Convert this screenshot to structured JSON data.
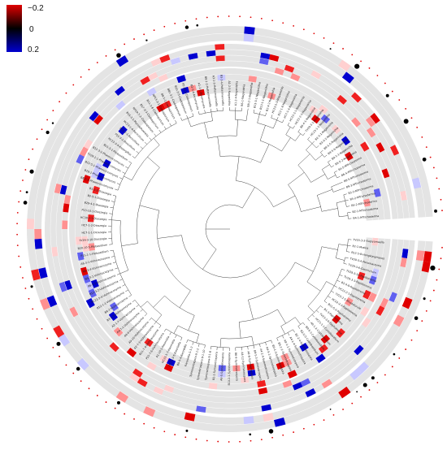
{
  "legend": {
    "ticks": [
      "−0.2",
      "0",
      "0.2"
    ],
    "colors": {
      "negative": "#e00000",
      "zero": "#000000",
      "positive": "#0000d0"
    }
  },
  "palette": {
    "background": "#ffffff",
    "ring_track": "#e4e4e4",
    "dot_black": "#000000",
    "dot_red": "#e00000",
    "tree_line": "#444444"
  },
  "tree_labels": [
    "TV23-3-2-Sugiyamaella",
    "B2-2-Mrakia",
    "B12-5-8-Hongkongmyces",
    "TV29-3-4-Ponomarzyma",
    "TV29-3-6-Geotrichum",
    "TV29-3-10-Papiliotrema",
    "TV29-3-3-Papiliotrema",
    "B2-4-9-Papiliotrema",
    "HC23-2-1-Papiliotrema",
    "TV23-2-5-Rhodotorula",
    "HC22-2-3-Papiliotrema",
    "B11-5-2-Papiliotrema",
    "B1-3-Papiliotrema",
    "TV23-3-6-Papiliotrema",
    "HC21-1-1-Cystobasidium",
    "A6-1-2-Cystobasidium",
    "B9-5-1-Cystobasidium",
    "B2-2-5-Cystobasidium",
    "B2-2-4-Symmetrospora",
    "A4-1-4-Symmetrospora",
    "A9-1-1-Symmetrospora",
    "B9-1-2-Symmetrospora",
    "B9-1-3-Symmetrospora",
    "A4-5-1-Symmetrospora",
    "A4-2-4-Symmetrospora",
    "B9-5-3-Symmetrospora",
    "A4-8-Symmetrospora",
    "A4-12-Symmetrospora",
    "B6-4-Symmetrospora",
    "B10-2-1-Symmetrospora",
    "A6-5-Symmetrospora",
    "B2-1-Symmetrospora",
    "Symmetrospora-9-1-8",
    "Symmetrospora-9-1-10",
    "Symmetrospora-9-1-2",
    "Kwoniella-5-1-2",
    "B9-5-4-Kwoniella",
    "HC21-3-5-Kwoniella",
    "HC23-1-7-Kwoniella",
    "A1-10-1-Kwoniella",
    "P15-7-6-Vishniacozyma",
    "B11-7-4-Vishniacozyma",
    "A2-7-3-Vishniacozyma",
    "A9-10-Vishniacozyma",
    "A9-6-Vishniacozyma",
    "A4-7-1-Vishniacozyma",
    "A2-1-7-Vishniacozyma",
    "B3-1-5-Vishniacozyma",
    "B8-1-Vishniacozyma",
    "B12-1-1-Vishniacozyma",
    "HC22-5-4-Vishniacozyma",
    "B12-3-2-Vishniacozyma",
    "B6-4-2-Vishniacozyma",
    "B5-3-1-Vishniacozyma",
    "A6-3-4-Vishniacozyma",
    "A6-3-1-Vishniacozyma",
    "P15-1-1-Filobasidium",
    "B20-10-5-Filobasidium",
    "TV29-3-10-Dioszegia",
    "HC7-1-1-Dioszegia",
    "HC7-1-2-Dioszegia",
    "HC30-1-1-Dioszegia",
    "P13-10-1-Dioszegia",
    "B29-4-1-Dioszegia",
    "B2-5-1-Dioszegia",
    "B3-3-5-Dioszegia",
    "B8-5-1-Phaeococcomyces",
    "B29-1-Phaeococcomyces",
    "B12-5-1-Phaeococcomyces",
    "TV29-1-1-Phaeococcomyces",
    "B12-3-3-Phaeococcomyces",
    "B11-5-1-Filobasidium",
    "HC22-3-4-Aspergillus",
    "P15-3-1-Penicillium",
    "B11-7-1-Penicillium",
    "HC23-1-4-Penicillium",
    "B15-3-1-Mycosphaerella",
    "NP19-7-2-Cladosporium",
    "B17-3-3-Cladosporium",
    "B11-1-6-Cladosporium",
    "NP13-3-1-Cladosporium",
    "B8-1-1-Cladosporium",
    "B81-3-1-Cladosporium",
    "B15-3-5-Cladosporium",
    "P5-10-1-Cladosporium",
    "B2-5-4-Ascomycota",
    "A1-1-1-Ascomycota",
    "B8-1-2-Holtermanniella",
    "A3-1-3-Holtermanniella",
    "B3-3-4-Holtermanniella",
    "A1-2-5-Naganishia",
    "A1-2-4-Naganishia",
    "B6-1-Naganishia",
    "B8-2-1-Naganishia",
    "B13-3-1-Naganishia",
    "B13-1-1-Naganishia",
    "B2-4-2-Naganishia",
    "HC23-5-3-Naganishia",
    "B12-1-8-Naganishia",
    "HC7-1-4-Naganishia",
    "HC23-3-1-Naganishia",
    "HC22-2-5-Naganishia",
    "B6-4-1-Naganishia",
    "TV29-3-1-Naganishia",
    "HC23-1-2-Naganishia",
    "B2-3-1-Naganishia",
    "B3-3-2-Naganishia",
    "B9-5-5-Naganishia",
    "B9-5-6-Naganishia",
    "B9-1-1-Naganishia",
    "B9-5-2-Naganishia",
    "B4-5-MTrichoderma",
    "B6-4-MTrichoderma",
    "B8-5-MTrichoderma",
    "B9-3-MTrichoderma",
    "B3-3-MTrichoderma",
    "B5-2-MTrichoderma",
    "B4-2-MTrichoderma",
    "B2-1-MTrichoderma",
    "B4-1-MTrichoderma"
  ]
}
